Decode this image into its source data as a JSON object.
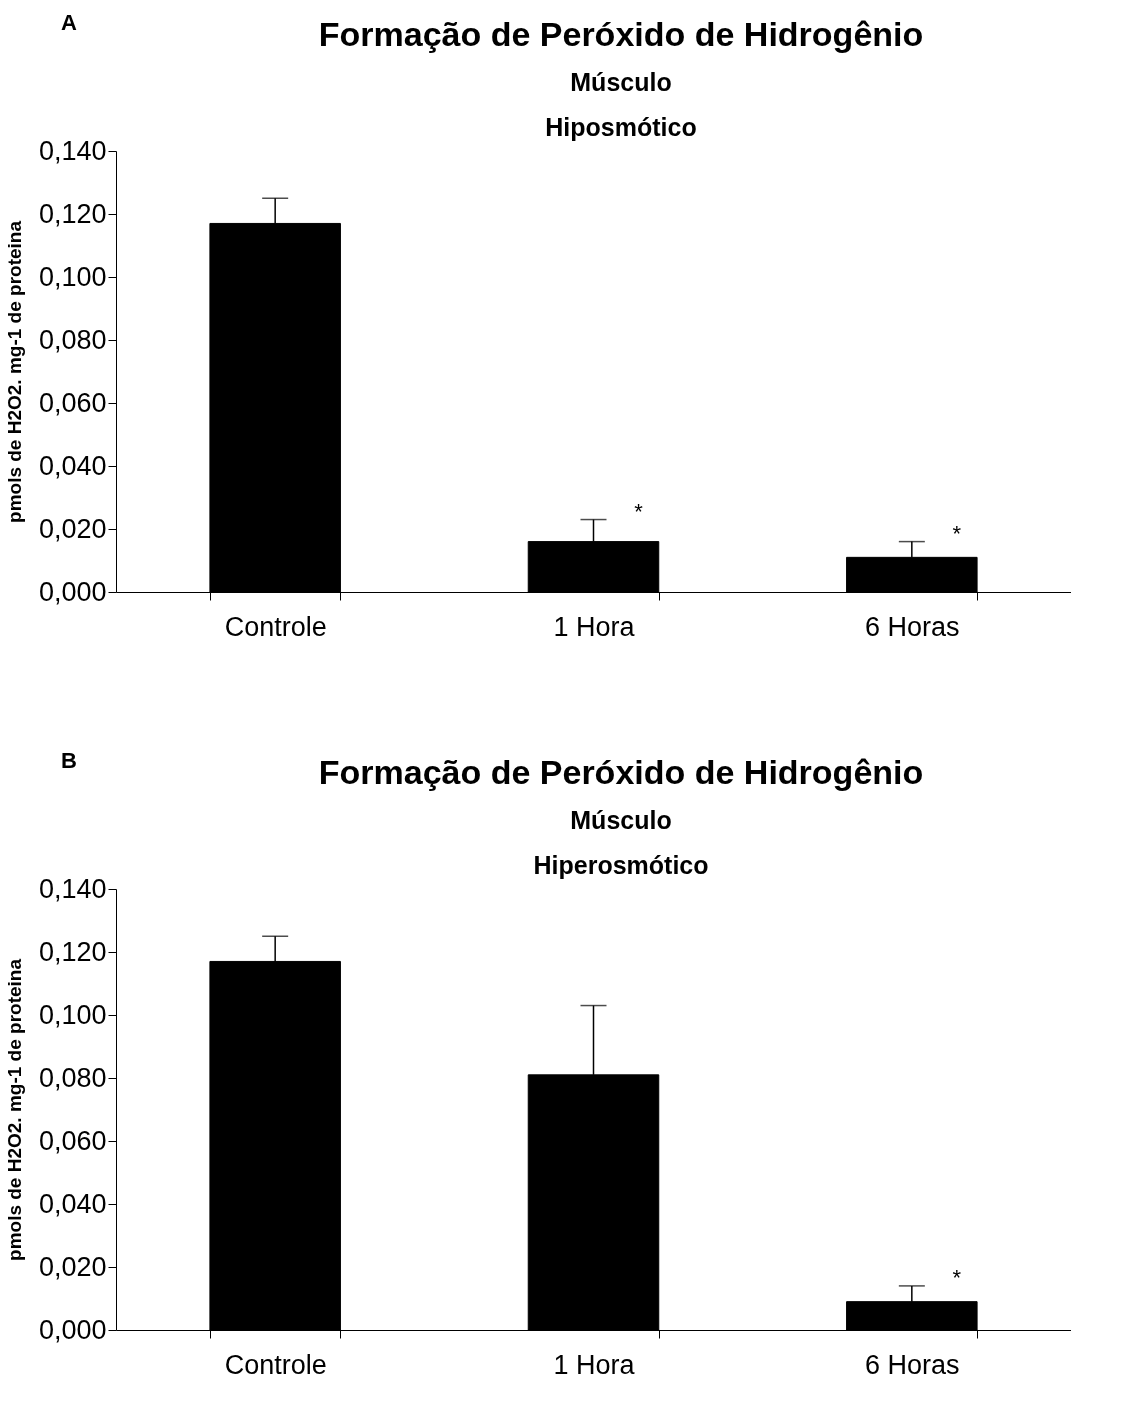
{
  "chart_data": [
    {
      "type": "bar",
      "title": "Formação de Peróxido de Hidrogênio",
      "subtitle": "Músculo\nHiposmótico",
      "ylabel": "pmols de H2O2. mg-1 de proteina",
      "categories": [
        "Controle",
        "1 Hora",
        "6 Horas"
      ],
      "values": [
        0.117,
        0.016,
        0.011
      ],
      "errors": [
        0.008,
        0.007,
        0.005
      ],
      "color": "#000000",
      "ylim": [
        0,
        0.14
      ],
      "yticks": [
        {
          "value": 0,
          "label": "0,000"
        },
        {
          "value": 0.02,
          "label": "0,020"
        },
        {
          "value": 0.04,
          "label": "0,040"
        },
        {
          "value": 0.06,
          "label": "0,060"
        },
        {
          "value": 0.08,
          "label": "0,080"
        },
        {
          "value": 0.1,
          "label": "0,100"
        },
        {
          "value": 0.12,
          "label": "0,120"
        },
        {
          "value": 0.14,
          "label": "0,140"
        }
      ],
      "annotations": [
        "A",
        {
          "text": "*",
          "x": "1 Hora",
          "y": 0.023
        },
        {
          "text": "*",
          "x": "6 Horas",
          "y": 0.016
        }
      ]
    },
    {
      "type": "bar",
      "title": "Formação de Peróxido de Hidrogênio",
      "subtitle": "Músculo\nHiperosmótico",
      "ylabel": "pmols de H2O2. mg-1 de proteina",
      "categories": [
        "Controle",
        "1 Hora",
        "6 Horas"
      ],
      "values": [
        0.117,
        0.081,
        0.009
      ],
      "errors": [
        0.008,
        0.022,
        0.005
      ],
      "color": "#000000",
      "ylim": [
        0,
        0.14
      ],
      "yticks": [
        {
          "value": 0,
          "label": "0,000"
        },
        {
          "value": 0.02,
          "label": "0,020"
        },
        {
          "value": 0.04,
          "label": "0,040"
        },
        {
          "value": 0.06,
          "label": "0,060"
        },
        {
          "value": 0.08,
          "label": "0,080"
        },
        {
          "value": 0.1,
          "label": "0,100"
        },
        {
          "value": 0.12,
          "label": "0,120"
        },
        {
          "value": 0.14,
          "label": "0,140"
        }
      ],
      "annotations": [
        "B",
        {
          "text": "*",
          "x": "6 Horas",
          "y": 0.014
        }
      ]
    }
  ]
}
